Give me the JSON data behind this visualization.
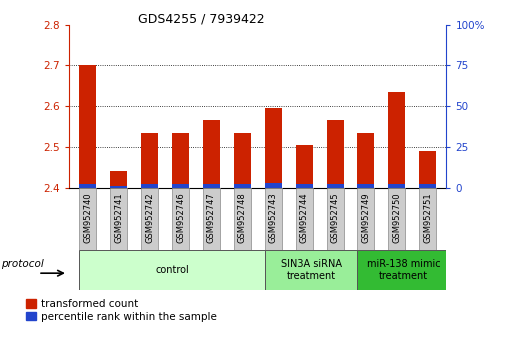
{
  "title": "GDS4255 / 7939422",
  "samples": [
    "GSM952740",
    "GSM952741",
    "GSM952742",
    "GSM952746",
    "GSM952747",
    "GSM952748",
    "GSM952743",
    "GSM952744",
    "GSM952745",
    "GSM952749",
    "GSM952750",
    "GSM952751"
  ],
  "red_values": [
    2.7,
    2.44,
    2.535,
    2.535,
    2.565,
    2.535,
    2.595,
    2.505,
    2.565,
    2.535,
    2.635,
    2.49
  ],
  "blue_values": [
    2.408,
    2.405,
    2.41,
    2.41,
    2.41,
    2.41,
    2.412,
    2.41,
    2.41,
    2.41,
    2.41,
    2.41
  ],
  "base": 2.4,
  "ylim_left": [
    2.4,
    2.8
  ],
  "ylim_right": [
    0,
    100
  ],
  "yticks_left": [
    2.4,
    2.5,
    2.6,
    2.7,
    2.8
  ],
  "yticks_right": [
    0,
    25,
    50,
    75,
    100
  ],
  "red_color": "#cc2200",
  "blue_color": "#2244cc",
  "bar_width": 0.55,
  "groups": [
    {
      "label": "control",
      "start": 0,
      "end": 6,
      "color": "#ccffcc"
    },
    {
      "label": "SIN3A siRNA\ntreatment",
      "start": 6,
      "end": 9,
      "color": "#99ee99"
    },
    {
      "label": "miR-138 mimic\ntreatment",
      "start": 9,
      "end": 12,
      "color": "#33bb33"
    }
  ],
  "grid_color": "#000000",
  "tick_label_area_color": "#cccccc",
  "protocol_label": "protocol",
  "spine_left_color": "#cc2200",
  "spine_right_color": "#2244cc"
}
